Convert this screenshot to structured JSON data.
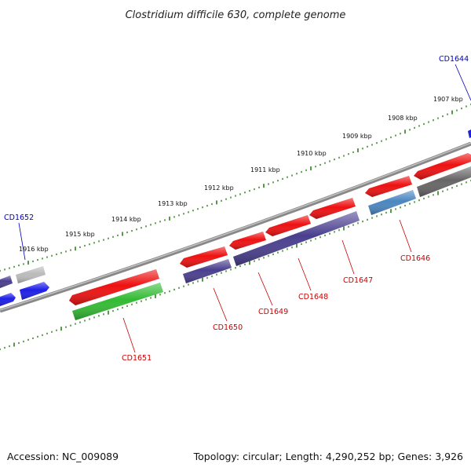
{
  "title": "Clostridium difficile 630, complete genome",
  "footer": {
    "accession": "Accession: NC_009089",
    "summary": "Topology: circular; Length: 4,290,252 bp; Genes: 3,926"
  },
  "colors": {
    "background": "#ffffff",
    "backbone": "#888888",
    "tick": "#2e7d1f",
    "label_forward": "#0000bb",
    "label_reverse": "#cc0000",
    "red": "#ee1111",
    "purple": "#4a3f8f",
    "green": "#33bb33",
    "blue": "#1e1ee8",
    "steelblue": "#4a86c0",
    "gray": "#666666",
    "lightgray": "#bbbbbb"
  },
  "kbp_labels": [
    "1916 kbp",
    "1915 kbp",
    "1914 kbp",
    "1913 kbp",
    "1912 kbp",
    "1911 kbp",
    "1910 kbp",
    "1909 kbp",
    "1908 kbp",
    "1907 kbp"
  ],
  "gene_labels": [
    {
      "id": "CD1652",
      "strand": "forward"
    },
    {
      "id": "CD1644",
      "strand": "forward"
    },
    {
      "id": "CD1651",
      "strand": "reverse"
    },
    {
      "id": "CD1650",
      "strand": "reverse"
    },
    {
      "id": "CD1649",
      "strand": "reverse"
    },
    {
      "id": "CD1648",
      "strand": "reverse"
    },
    {
      "id": "CD1647",
      "strand": "reverse"
    },
    {
      "id": "CD1646",
      "strand": "reverse"
    }
  ]
}
